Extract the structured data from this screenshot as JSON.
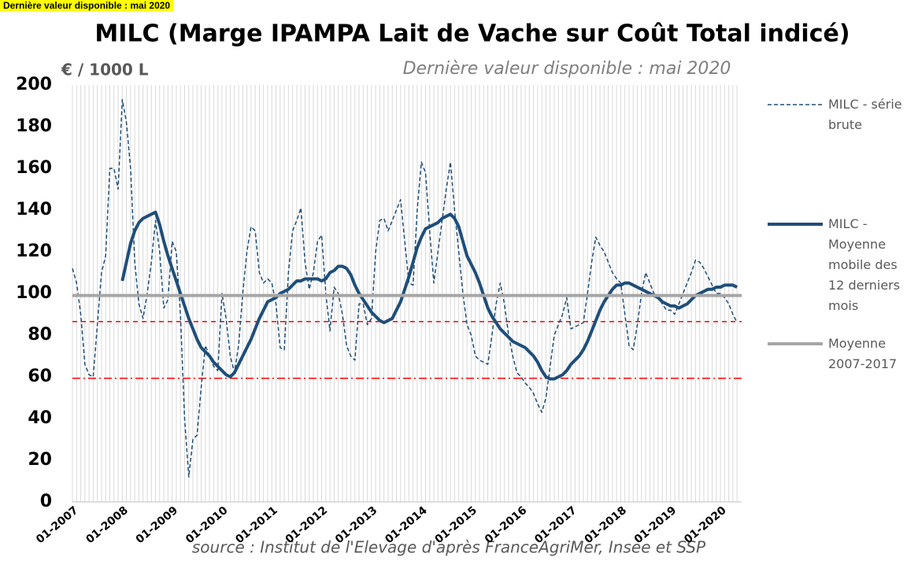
{
  "banner": "Dernière valeur disponible : mai 2020",
  "chart_data": {
    "type": "line",
    "title": "MILC (Marge IPAMPA Lait de Vache sur Coût Total indicé)",
    "subtitle": "Dernière valeur disponible : mai 2020",
    "y_label": "€ / 1000 L",
    "source": "source : Institut de l'Elevage d'après FranceAgriMer, Insee et SSP",
    "categories": [
      "01-2007",
      null,
      null,
      null,
      null,
      null,
      null,
      null,
      null,
      null,
      null,
      null,
      "01-2008",
      null,
      null,
      null,
      null,
      null,
      null,
      null,
      null,
      null,
      null,
      null,
      "01-2009",
      null,
      null,
      null,
      null,
      null,
      null,
      null,
      null,
      null,
      null,
      null,
      "01-2010",
      null,
      null,
      null,
      null,
      null,
      null,
      null,
      null,
      null,
      null,
      null,
      "01-2011",
      null,
      null,
      null,
      null,
      null,
      null,
      null,
      null,
      null,
      null,
      null,
      "01-2012",
      null,
      null,
      null,
      null,
      null,
      null,
      null,
      null,
      null,
      null,
      null,
      "01-2013",
      null,
      null,
      null,
      null,
      null,
      null,
      null,
      null,
      null,
      null,
      null,
      "01-2014",
      null,
      null,
      null,
      null,
      null,
      null,
      null,
      null,
      null,
      null,
      null,
      "01-2015",
      null,
      null,
      null,
      null,
      null,
      null,
      null,
      null,
      null,
      null,
      null,
      "01-2016",
      null,
      null,
      null,
      null,
      null,
      null,
      null,
      null,
      null,
      null,
      null,
      "01-2017",
      null,
      null,
      null,
      null,
      null,
      null,
      null,
      null,
      null,
      null,
      null,
      "01-2018",
      null,
      null,
      null,
      null,
      null,
      null,
      null,
      null,
      null,
      null,
      null,
      "01-2019",
      null,
      null,
      null,
      null,
      null,
      null,
      null,
      null,
      null,
      null,
      null,
      "01-2020",
      null,
      null,
      null,
      null
    ],
    "series": [
      {
        "name": "MILC - série brute",
        "color": "#1f4e79",
        "style": "dashed",
        "values": [
          112,
          105,
          90,
          66,
          61,
          60,
          85,
          110,
          118,
          160,
          160,
          150,
          193,
          182,
          160,
          115,
          95,
          88,
          100,
          115,
          135,
          120,
          93,
          97,
          125,
          120,
          90,
          40,
          12,
          30,
          32,
          55,
          75,
          70,
          65,
          63,
          100,
          88,
          70,
          62,
          75,
          100,
          120,
          132,
          130,
          110,
          105,
          107,
          105,
          95,
          74,
          73,
          110,
          130,
          135,
          141,
          115,
          102,
          110,
          125,
          128,
          100,
          82,
          103,
          100,
          90,
          75,
          70,
          68,
          95,
          95,
          85,
          88,
          120,
          135,
          136,
          130,
          135,
          140,
          145,
          125,
          105,
          104,
          140,
          163,
          158,
          130,
          105,
          120,
          135,
          150,
          163,
          140,
          120,
          100,
          85,
          80,
          70,
          68,
          67,
          66,
          80,
          95,
          105,
          95,
          80,
          70,
          62,
          60,
          57,
          55,
          52,
          47,
          43,
          50,
          65,
          80,
          85,
          90,
          98,
          83,
          84,
          85,
          86,
          100,
          115,
          127,
          123,
          120,
          115,
          110,
          107,
          105,
          90,
          75,
          73,
          85,
          100,
          110,
          105,
          100,
          98,
          95,
          92,
          92,
          90,
          95,
          100,
          105,
          110,
          116,
          115,
          112,
          108,
          104,
          100,
          100,
          98,
          95,
          90,
          86
        ]
      },
      {
        "name": "MILC - Moyenne mobile des 12 derniers mois",
        "color": "#1f4e79",
        "style": "thick",
        "values": [
          null,
          null,
          null,
          null,
          null,
          null,
          null,
          null,
          null,
          null,
          null,
          null,
          106,
          115,
          124,
          130,
          134,
          136,
          137,
          138,
          139,
          133,
          125,
          118,
          112,
          106,
          100,
          94,
          88,
          83,
          78,
          74,
          72,
          70,
          67,
          65,
          63,
          61,
          60,
          62,
          66,
          70,
          74,
          78,
          83,
          88,
          92,
          96,
          97,
          98,
          100,
          101,
          102,
          104,
          106,
          106,
          107,
          107,
          107,
          107,
          106,
          107,
          110,
          111,
          113,
          113,
          112,
          109,
          104,
          100,
          97,
          94,
          91,
          89,
          87,
          86,
          87,
          88,
          92,
          96,
          102,
          108,
          115,
          122,
          127,
          131,
          132,
          133,
          134,
          136,
          137,
          138,
          136,
          132,
          125,
          118,
          114,
          110,
          105,
          99,
          93,
          89,
          86,
          83,
          81,
          79,
          77,
          76,
          75,
          74,
          72,
          70,
          67,
          63,
          60,
          59,
          59,
          60,
          61,
          63,
          66,
          68,
          70,
          73,
          77,
          82,
          87,
          92,
          96,
          99,
          102,
          104,
          104,
          105,
          105,
          104,
          103,
          102,
          101,
          100,
          99,
          98,
          96,
          95,
          94,
          94,
          93,
          94,
          95,
          97,
          99,
          100,
          101,
          102,
          102,
          103,
          103,
          104,
          104,
          104,
          103
        ]
      },
      {
        "name": "Moyenne 2007-2017",
        "color": "#a6a6a6",
        "style": "flat",
        "value": 99
      }
    ],
    "hlines": [
      {
        "value": 86.5,
        "color": "#ff0000",
        "dash": "6 5"
      },
      {
        "value": 59.3,
        "color": "#ff0000",
        "dash": "10 4 2 4"
      }
    ],
    "ylim": [
      0,
      200
    ],
    "yticks": [
      0,
      20,
      40,
      60,
      80,
      100,
      120,
      140,
      160,
      180,
      200
    ],
    "grid": "vertical"
  }
}
